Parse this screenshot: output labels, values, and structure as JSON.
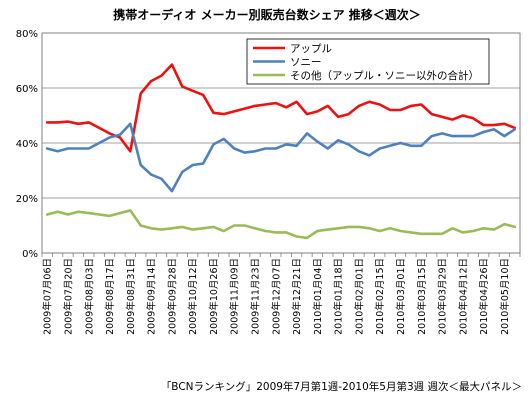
{
  "chart_data": {
    "type": "line",
    "title": "携帯オーディオ メーカー別販売台数シェア 推移＜週次＞",
    "caption": "「BCNランキング」2009年7月第1週-2010年5月第3週 週次＜最大パネル＞",
    "xlabel": "",
    "ylabel": "",
    "ylim": [
      0,
      80
    ],
    "y_ticks": [
      "0%",
      "20%",
      "40%",
      "60%",
      "80%"
    ],
    "grid": true,
    "legend_position": "top-right",
    "x": [
      "2009年07月06日",
      "2009年07月13日",
      "2009年07月20日",
      "2009年07月27日",
      "2009年08月03日",
      "2009年08月10日",
      "2009年08月17日",
      "2009年08月24日",
      "2009年08月31日",
      "2009年09月07日",
      "2009年09月14日",
      "2009年09月21日",
      "2009年09月28日",
      "2009年10月05日",
      "2009年10月12日",
      "2009年10月19日",
      "2009年10月26日",
      "2009年11月02日",
      "2009年11月09日",
      "2009年11月16日",
      "2009年11月23日",
      "2009年11月30日",
      "2009年12月07日",
      "2009年12月14日",
      "2009年12月21日",
      "2009年12月28日",
      "2010年01月04日",
      "2010年01月11日",
      "2010年01月18日",
      "2010年01月25日",
      "2010年02月01日",
      "2010年02月08日",
      "2010年02月15日",
      "2010年02月22日",
      "2010年03月01日",
      "2010年03月08日",
      "2010年03月15日",
      "2010年03月22日",
      "2010年03月29日",
      "2010年04月05日",
      "2010年04月12日",
      "2010年04月19日",
      "2010年04月26日",
      "2010年05月03日",
      "2010年05月10日",
      "2010年05月17日"
    ],
    "x_tick_labels": [
      "2009年07月06日",
      "2009年07月20日",
      "2009年08月03日",
      "2009年08月17日",
      "2009年08月31日",
      "2009年09月14日",
      "2009年09月28日",
      "2009年10月12日",
      "2009年10月26日",
      "2009年11月09日",
      "2009年11月23日",
      "2009年12月07日",
      "2009年12月21日",
      "2010年01月04日",
      "2010年01月18日",
      "2010年02月01日",
      "2010年02月15日",
      "2010年03月01日",
      "2010年03月15日",
      "2010年03月29日",
      "2010年04月12日",
      "2010年04月26日",
      "2010年05月10日"
    ],
    "series": [
      {
        "name": "アップル",
        "color": "#ee1111",
        "values": [
          47.5,
          47.5,
          47.8,
          47.0,
          47.5,
          45.5,
          43.5,
          42.0,
          37.0,
          58.0,
          62.5,
          64.5,
          68.5,
          60.5,
          59.0,
          57.5,
          51.0,
          50.5,
          51.5,
          52.5,
          53.5,
          54.0,
          54.5,
          53.0,
          55.0,
          50.5,
          51.5,
          53.5,
          49.5,
          50.5,
          53.5,
          55.0,
          54.0,
          52.0,
          52.0,
          53.5,
          54.0,
          50.5,
          49.5,
          48.5,
          50.0,
          49.0,
          46.5,
          46.5,
          47.0,
          45.5
        ]
      },
      {
        "name": "ソニー",
        "color": "#4f81bd",
        "values": [
          38.0,
          37.0,
          38.0,
          38.0,
          38.0,
          40.0,
          42.0,
          43.0,
          47.0,
          32.0,
          28.5,
          27.0,
          22.5,
          29.5,
          32.0,
          32.5,
          39.5,
          41.5,
          38.0,
          36.5,
          37.0,
          38.0,
          38.0,
          39.5,
          39.0,
          43.5,
          40.5,
          38.0,
          41.0,
          39.5,
          37.0,
          35.5,
          38.0,
          39.0,
          40.0,
          39.0,
          39.0,
          42.5,
          43.5,
          42.5,
          42.5,
          42.5,
          44.0,
          45.0,
          42.5,
          45.0
        ]
      },
      {
        "name": "その他（アップル・ソニー以外の合計）",
        "color": "#9bbb59",
        "values": [
          14.0,
          15.0,
          14.0,
          15.0,
          14.5,
          14.0,
          13.5,
          14.5,
          15.5,
          10.0,
          9.0,
          8.5,
          9.0,
          9.5,
          8.5,
          9.0,
          9.5,
          8.0,
          10.0,
          10.0,
          9.0,
          8.0,
          7.5,
          7.5,
          6.0,
          5.5,
          8.0,
          8.5,
          9.0,
          9.5,
          9.5,
          9.0,
          8.0,
          9.0,
          8.0,
          7.5,
          7.0,
          7.0,
          7.0,
          9.0,
          7.5,
          8.0,
          9.0,
          8.5,
          10.5,
          9.5
        ]
      }
    ]
  }
}
